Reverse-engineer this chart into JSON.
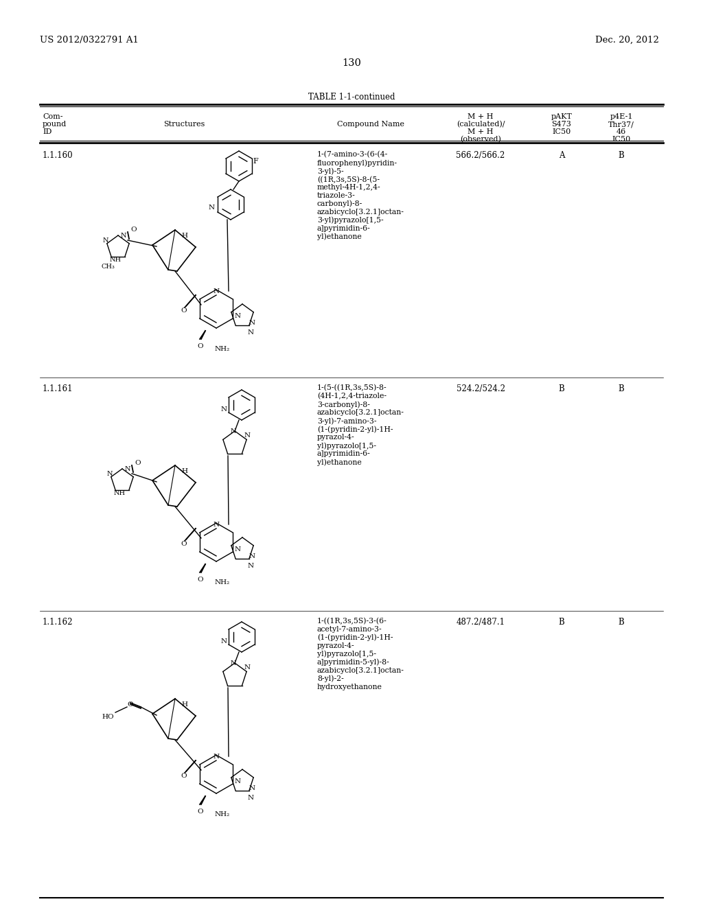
{
  "page_left": "US 2012/0322791 A1",
  "page_right": "Dec. 20, 2012",
  "page_number": "130",
  "table_title": "TABLE 1-1-continued",
  "background_color": "#ffffff",
  "rows": [
    {
      "id": "1.1.160",
      "mh": "566.2/566.2",
      "pakt": "A",
      "p4e1": "B",
      "name": "1-(7-amino-3-(6-(4-\nfluorophenyl)pyridin-\n3-yl)-5-\n((1R,3s,5S)-8-(5-\nmethyl-4H-1,2,4-\ntriazole-3-\ncarbonyl)-8-\nazabicyclo[3.2.1]octan-\n3-yl)pyrazolo[1,5-\na]pyrimidin-6-\nyl)ethanone"
    },
    {
      "id": "1.1.161",
      "mh": "524.2/524.2",
      "pakt": "B",
      "p4e1": "B",
      "name": "1-(5-((1R,3s,5S)-8-\n(4H-1,2,4-triazole-\n3-carbonyl)-8-\nazabicyclo[3.2.1]octan-\n3-yl)-7-amino-3-\n(1-(pyridin-2-yl)-1H-\npyrazol-4-\nyl)pyrazolo[1,5-\na]pyrimidin-6-\nyl)ethanone"
    },
    {
      "id": "1.1.162",
      "mh": "487.2/487.1",
      "pakt": "B",
      "p4e1": "B",
      "name": "1-((1R,3s,5S)-3-(6-\nacetyl-7-amino-3-\n(1-(pyridin-2-yl)-1H-\npyrazol-4-\nyl)pyrazolo[1,5-\na]pyrimidin-5-yl)-8-\nazabicyclo[3.2.1]octan-\n8-yl)-2-\nhydroxyethanone"
    }
  ]
}
